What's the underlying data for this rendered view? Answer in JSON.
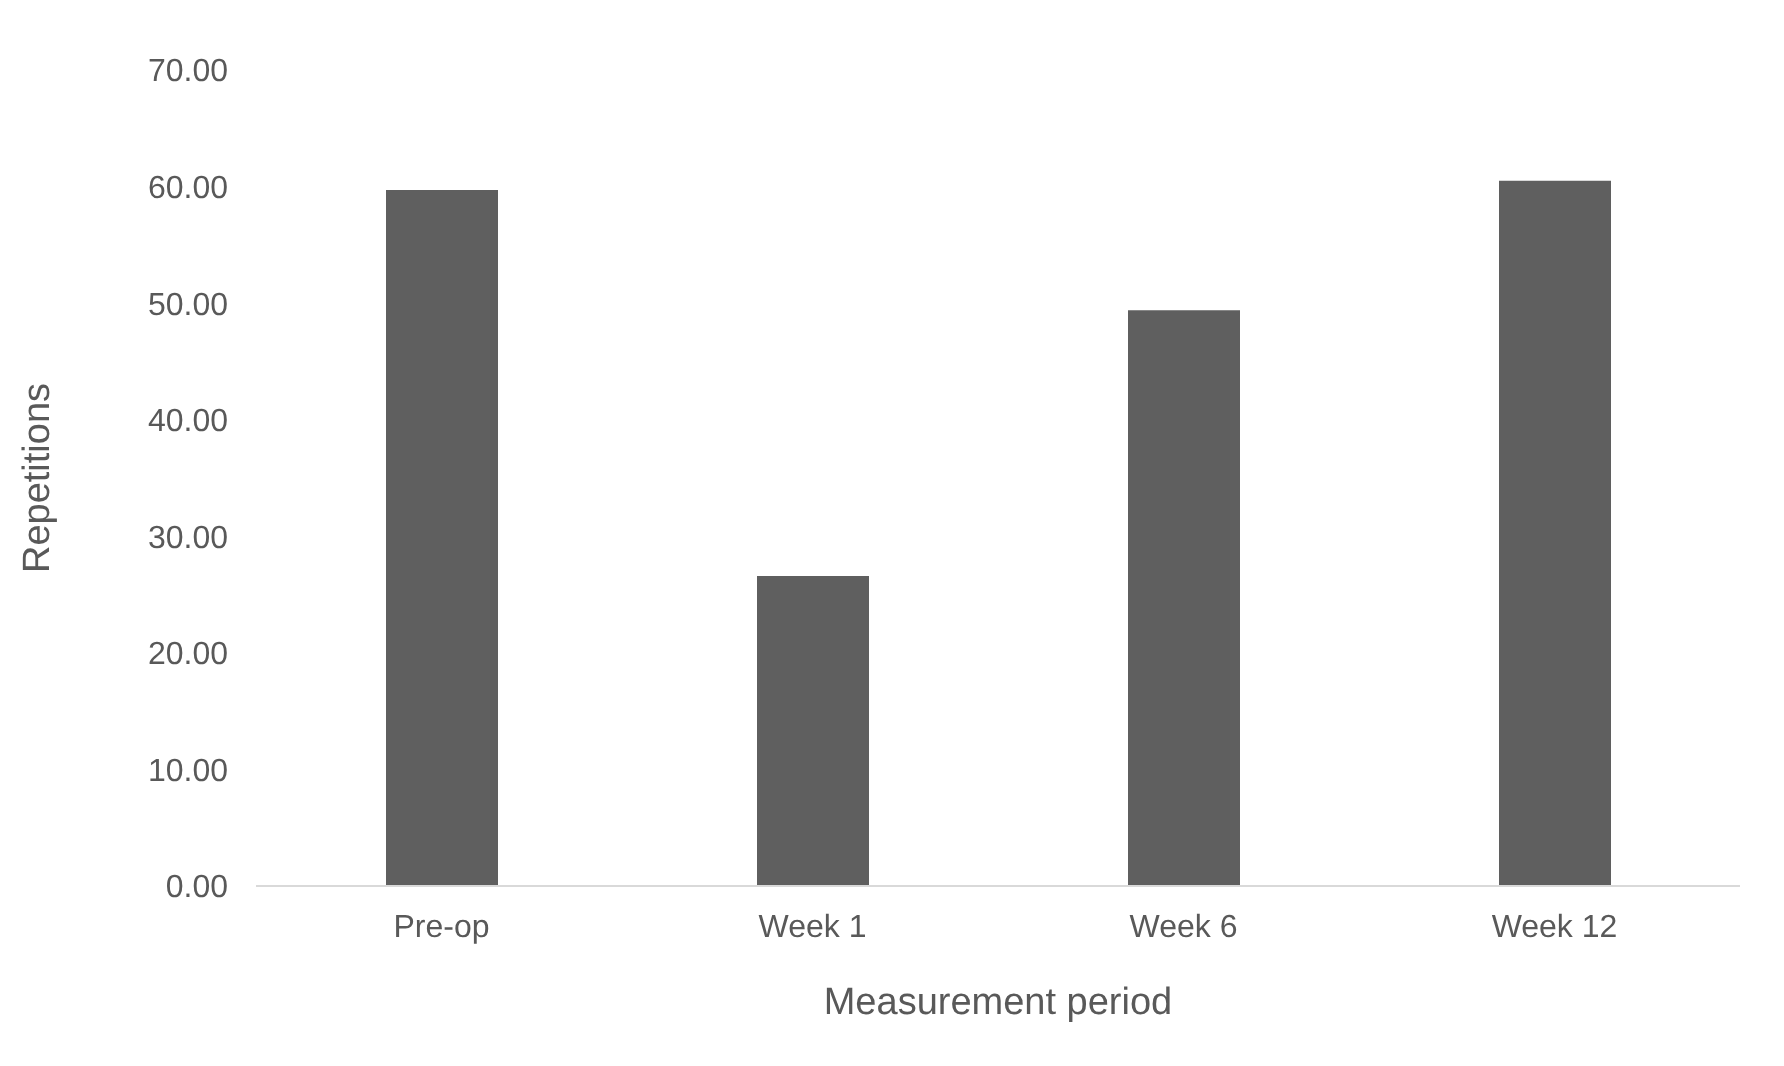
{
  "chart_data": {
    "type": "bar",
    "xlabel": "Measurement period",
    "ylabel": "Repetitions",
    "categories": [
      "Pre-op",
      "Week 1",
      "Week 6",
      "Week 12"
    ],
    "values": [
      59.7,
      26.6,
      49.4,
      60.5
    ],
    "color": "#5f5f5f",
    "ylim": [
      0,
      70
    ],
    "yticks": [
      {
        "value": 0,
        "label": "0.00"
      },
      {
        "value": 10,
        "label": "10.00"
      },
      {
        "value": 20,
        "label": "20.00"
      },
      {
        "value": 30,
        "label": "30.00"
      },
      {
        "value": 40,
        "label": "40.00"
      },
      {
        "value": 50,
        "label": "50.00"
      },
      {
        "value": 60,
        "label": "60.00"
      },
      {
        "value": 70,
        "label": "70.00"
      }
    ],
    "grid": false,
    "legend": false
  }
}
